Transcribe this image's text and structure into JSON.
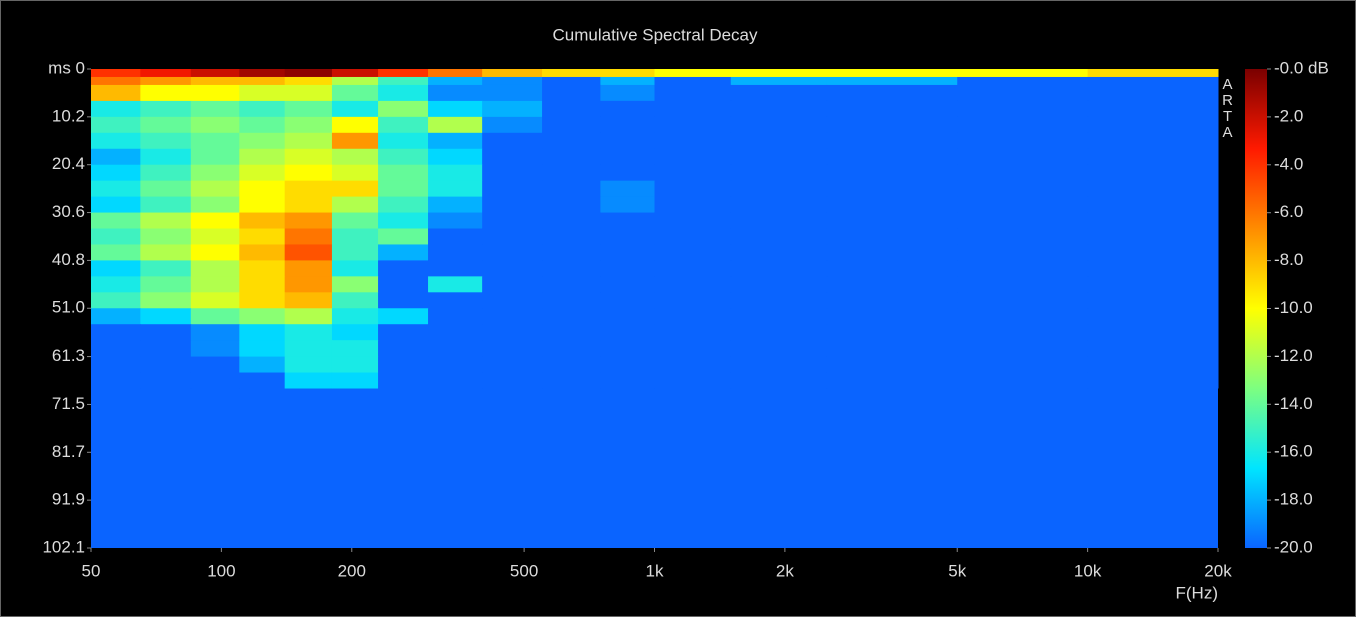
{
  "chart_data": {
    "type": "heatmap",
    "title": "Cumulative Spectral Decay",
    "xlabel": "F(Hz)",
    "watermark": "ARTA",
    "xscale": "log",
    "xlim": [
      50,
      20000
    ],
    "ylim": [
      0,
      102.1
    ],
    "y_reversed": true,
    "xticks": [
      50,
      100,
      200,
      500,
      {
        "value": 1000,
        "label": "1k"
      },
      {
        "value": 2000,
        "label": "2k"
      },
      {
        "value": 5000,
        "label": "5k"
      },
      {
        "value": 10000,
        "label": "10k"
      },
      {
        "value": 20000,
        "label": "20k"
      }
    ],
    "yticks": [
      {
        "value": 0,
        "label": "ms 0"
      },
      10.2,
      20.4,
      30.6,
      40.8,
      {
        "value": 51,
        "label": "51.0"
      },
      61.3,
      71.5,
      81.7,
      91.9,
      102.1
    ],
    "clim": [
      -20,
      0
    ],
    "cticks": [
      {
        "value": 0,
        "label": "-0.0 dB"
      },
      {
        "value": -2,
        "label": "-2.0"
      },
      {
        "value": -4,
        "label": "-4.0"
      },
      {
        "value": -6,
        "label": "-6.0"
      },
      {
        "value": -8,
        "label": "-8.0"
      },
      {
        "value": -10,
        "label": "-10.0"
      },
      {
        "value": -12,
        "label": "-12.0"
      },
      {
        "value": -14,
        "label": "-14.0"
      },
      {
        "value": -16,
        "label": "-16.0"
      },
      {
        "value": -18,
        "label": "-18.0"
      },
      {
        "value": -20,
        "label": "-20.0"
      }
    ],
    "colormap": [
      "#0a64ff",
      "#00e5ff",
      "#7dff80",
      "#ffff00",
      "#ff8c00",
      "#ff1a00",
      "#7a0000"
    ],
    "xbins": [
      50,
      65,
      85,
      110,
      140,
      180,
      230,
      300,
      400,
      550,
      750,
      1000,
      1500,
      2500,
      5000,
      10000,
      20000
    ],
    "ybins": [
      0,
      1.7,
      3.4,
      6.8,
      10.2,
      13.6,
      17,
      20.4,
      23.8,
      27.2,
      30.6,
      34,
      37.4,
      40.8,
      44.2,
      47.6,
      51,
      54.4,
      57.8,
      61.3,
      64.7,
      68
    ],
    "z": [
      [
        -4,
        -3,
        -2,
        -1,
        -0.5,
        -2,
        -4,
        -6,
        -8,
        -9,
        -9,
        -10,
        -10,
        -10,
        -10,
        -9
      ],
      [
        -6,
        -7,
        -8,
        -8,
        -9,
        -12,
        -15,
        -18,
        -19,
        -20,
        -18,
        -20,
        -18,
        -18,
        -20,
        -20
      ],
      [
        -8,
        -10,
        -10,
        -11,
        -11,
        -14,
        -16,
        -19,
        -19,
        -20,
        -19,
        -20,
        -20,
        -20,
        -20,
        -20
      ],
      [
        -16,
        -15,
        -14,
        -15,
        -14,
        -16,
        -13,
        -17,
        -18,
        -20,
        -20,
        -20,
        -20,
        -20,
        -20,
        -20
      ],
      [
        -15,
        -14,
        -13,
        -14,
        -13,
        -10,
        -15,
        -12,
        -19,
        -20,
        -20,
        -20,
        -20,
        -20,
        -20,
        -20
      ],
      [
        -16,
        -15,
        -14,
        -13,
        -12,
        -7,
        -16,
        -18,
        -20,
        -20,
        -20,
        -20,
        -20,
        -20,
        -20,
        -20
      ],
      [
        -18,
        -16,
        -14,
        -12,
        -11,
        -12,
        -15,
        -17,
        -20,
        -20,
        -20,
        -20,
        -20,
        -20,
        -20,
        -20
      ],
      [
        -17,
        -15,
        -13,
        -11,
        -10,
        -11,
        -14,
        -16,
        -20,
        -20,
        -20,
        -20,
        -20,
        -20,
        -20,
        -20
      ],
      [
        -16,
        -14,
        -12,
        -10,
        -9,
        -9,
        -14,
        -16,
        -20,
        -20,
        -19,
        -20,
        -20,
        -20,
        -20,
        -20
      ],
      [
        -17,
        -15,
        -13,
        -10,
        -9,
        -12,
        -15,
        -18,
        -20,
        -20,
        -19,
        -20,
        -20,
        -20,
        -20,
        -20
      ],
      [
        -14,
        -12,
        -10,
        -8,
        -7,
        -14,
        -16,
        -19,
        -20,
        -20,
        -20,
        -20,
        -20,
        -20,
        -20,
        -20
      ],
      [
        -15,
        -13,
        -11,
        -9,
        -6,
        -15,
        -14,
        -20,
        -20,
        -20,
        -20,
        -20,
        -20,
        -20,
        -20,
        -20
      ],
      [
        -14,
        -12,
        -10,
        -8,
        -5,
        -15,
        -18,
        -20,
        -20,
        -20,
        -20,
        -20,
        -20,
        -20,
        -20,
        -20
      ],
      [
        -17,
        -15,
        -12,
        -9,
        -7,
        -16,
        -20,
        -20,
        -20,
        -20,
        -20,
        -20,
        -20,
        -20,
        -20,
        -20
      ],
      [
        -16,
        -14,
        -12,
        -9,
        -7,
        -13,
        -20,
        -16,
        -20,
        -20,
        -20,
        -20,
        -20,
        -20,
        -20,
        -20
      ],
      [
        -15,
        -13,
        -11,
        -9,
        -8,
        -15,
        -20,
        -20,
        -20,
        -20,
        -20,
        -20,
        -20,
        -20,
        -20,
        -20
      ],
      [
        -18,
        -17,
        -14,
        -13,
        -12,
        -16,
        -17,
        -20,
        -20,
        -20,
        -20,
        -20,
        -20,
        -20,
        -20,
        -20
      ],
      [
        -20,
        -20,
        -19,
        -17,
        -16,
        -17,
        -20,
        -20,
        -20,
        -20,
        -20,
        -20,
        -20,
        -20,
        -20,
        -20
      ],
      [
        -20,
        -20,
        -19,
        -17,
        -16,
        -16,
        -20,
        -20,
        -20,
        -20,
        -20,
        -20,
        -20,
        -20,
        -20,
        -20
      ],
      [
        -20,
        -20,
        -20,
        -18,
        -16,
        -16,
        -20,
        -20,
        -20,
        -20,
        -20,
        -20,
        -20,
        -20,
        -20,
        -20
      ],
      [
        -20,
        -20,
        -20,
        -20,
        -17,
        -17,
        -20,
        -20,
        -20,
        -20,
        -20,
        -20,
        -20,
        -20,
        -20,
        -20
      ]
    ]
  }
}
